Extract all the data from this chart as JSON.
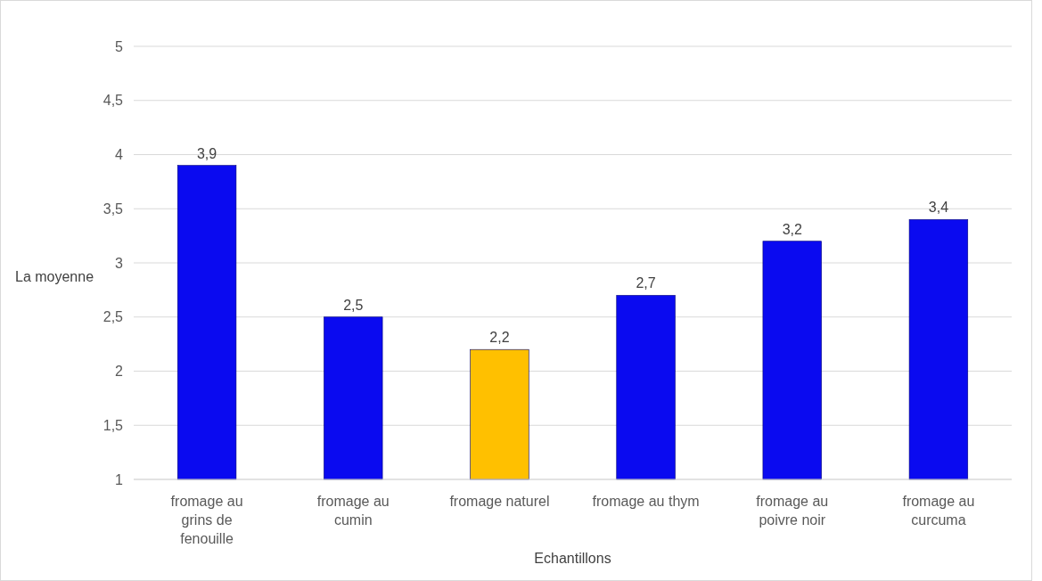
{
  "chart_data": {
    "type": "bar",
    "xlabel": "Echantillons",
    "ylabel": "La moyenne",
    "categories": [
      "fromage au grins de fenouille",
      "fromage au cumin",
      "fromage naturel",
      "fromage au thym",
      "fromage au poivre noir",
      "fromage au curcuma"
    ],
    "values": [
      3.9,
      2.5,
      2.2,
      2.7,
      3.2,
      3.4
    ],
    "value_labels": [
      "3,9",
      "2,5",
      "2,2",
      "2,7",
      "3,2",
      "3,4"
    ],
    "colors": [
      "#0a0af0",
      "#0a0af0",
      "#ffc000",
      "#0a0af0",
      "#0a0af0",
      "#0a0af0"
    ],
    "ylim": [
      1,
      5
    ],
    "yticks": [
      1,
      {
        "value": 1.5,
        "label": "1,5"
      },
      2,
      {
        "value": 2.5,
        "label": "2,5"
      },
      3,
      {
        "value": 3.5,
        "label": "3,5"
      },
      4,
      {
        "value": 4.5,
        "label": "4,5"
      },
      5
    ],
    "grid": "y"
  }
}
